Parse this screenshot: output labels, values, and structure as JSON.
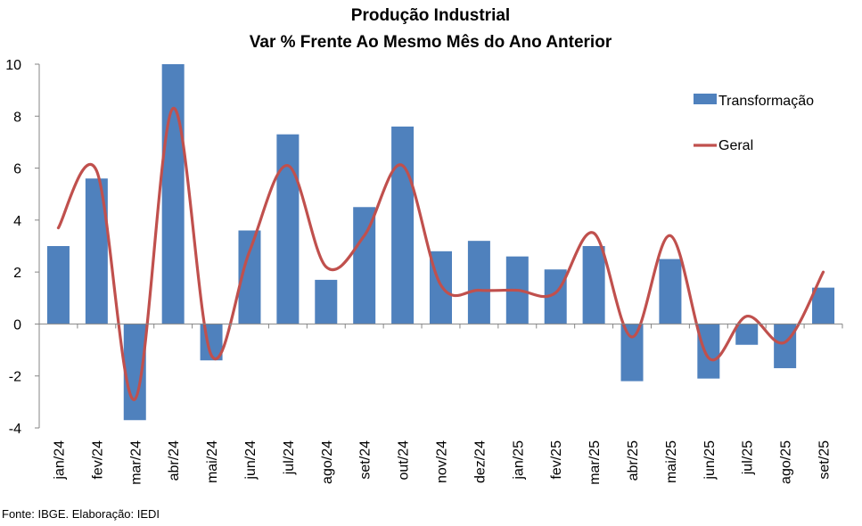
{
  "chart_data": {
    "type": "bar",
    "title": "Produção Industrial",
    "subtitle": "Var % Frente Ao Mesmo Mês do Ano Anterior",
    "xlabel": "",
    "ylabel": "",
    "ylim": [
      -4,
      10
    ],
    "yticks": [
      10,
      8,
      6,
      4,
      2,
      0,
      -2,
      -4
    ],
    "categories": [
      "jan/24",
      "fev/24",
      "mar/24",
      "abr/24",
      "mai/24",
      "jun/24",
      "jul/24",
      "ago/24",
      "set/24",
      "out/24",
      "nov/24",
      "dez/24",
      "jan/25",
      "fev/25",
      "mar/25",
      "abr/25",
      "mai/25",
      "jun/25",
      "jul/25",
      "ago/25",
      "set/25"
    ],
    "series": [
      {
        "name": "Transformação",
        "kind": "bar",
        "color": "#4f81bd",
        "values": [
          3.0,
          5.6,
          -3.7,
          10.0,
          -1.4,
          3.6,
          7.3,
          1.7,
          4.5,
          7.6,
          2.8,
          3.2,
          2.6,
          2.1,
          3.0,
          -2.2,
          2.5,
          -2.1,
          -0.8,
          -1.7,
          1.4
        ]
      },
      {
        "name": "Geral",
        "kind": "line",
        "color": "#c0504d",
        "values": [
          3.7,
          5.9,
          -2.9,
          8.3,
          -1.2,
          2.8,
          6.1,
          2.2,
          3.4,
          6.1,
          1.5,
          1.3,
          1.3,
          1.2,
          3.5,
          -0.5,
          3.4,
          -1.3,
          0.3,
          -0.7,
          2.0
        ]
      }
    ],
    "legend_position": "top-right",
    "grid": false
  },
  "source": "Fonte: IBGE. Elaboração: IEDI"
}
